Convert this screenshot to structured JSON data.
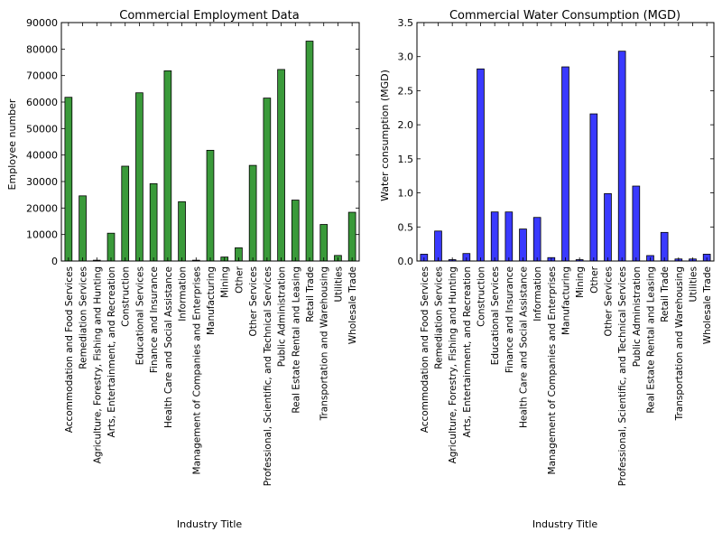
{
  "colors": {
    "employment_bar": "#3a9a3a",
    "water_bar": "#3a3aff",
    "bar_edge": "#000000",
    "axis": "#000000"
  },
  "chart_data": [
    {
      "id": "employment",
      "type": "bar",
      "title": "Commercial Employment Data",
      "xlabel": "Industry Title",
      "ylabel": "Employee number",
      "ylim": [
        0,
        90000
      ],
      "yticks": [
        "0",
        "10000",
        "20000",
        "30000",
        "40000",
        "50000",
        "60000",
        "70000",
        "80000",
        "90000"
      ],
      "ytick_values": [
        0,
        10000,
        20000,
        30000,
        40000,
        50000,
        60000,
        70000,
        80000,
        90000
      ],
      "categories": [
        "Accommodation and Food Services",
        "Remediation Services",
        "Agriculture, Forestry, Fishing and Hunting",
        "Arts, Entertainment, and Recreation",
        "Construction",
        "Educational Services",
        "Finance and Insurance",
        "Health Care and Social Assistance",
        "Information",
        "Management of Companies and Enterprises",
        "Manufacturing",
        "Mining",
        "Other",
        "Other Services",
        "Professional, Scientific, and Technical Services",
        "Public Administration",
        "Real Estate Rental and Leasing",
        "Retail Trade",
        "Transportation and Warehousing",
        "Utilities",
        "Wholesale Trade"
      ],
      "values": [
        61800,
        24600,
        300,
        10500,
        35800,
        63500,
        29200,
        71800,
        22400,
        300,
        41800,
        1500,
        5000,
        36100,
        61500,
        72300,
        23000,
        83000,
        13800,
        2100,
        18400
      ]
    },
    {
      "id": "water",
      "type": "bar",
      "title": "Commercial Water Consumption (MGD)",
      "xlabel": "Industry Title",
      "ylabel": "Water consumption (MGD)",
      "ylim": [
        0,
        3.5
      ],
      "yticks": [
        "0.0",
        "0.5",
        "1.0",
        "1.5",
        "2.0",
        "2.5",
        "3.0",
        "3.5"
      ],
      "ytick_values": [
        0,
        0.5,
        1.0,
        1.5,
        2.0,
        2.5,
        3.0,
        3.5
      ],
      "categories": [
        "Accommodation and Food Services",
        "Remediation Services",
        "Agriculture, Forestry, Fishing and Hunting",
        "Arts, Entertainment, and Recreation",
        "Construction",
        "Educational Services",
        "Finance and Insurance",
        "Health Care and Social Assistance",
        "Information",
        "Management of Companies and Enterprises",
        "Manufacturing",
        "Mining",
        "Other",
        "Other Services",
        "Professional, Scientific, and Technical Services",
        "Public Administration",
        "Real Estate Rental and Leasing",
        "Retail Trade",
        "Transportation and Warehousing",
        "Utilities",
        "Wholesale Trade"
      ],
      "values": [
        0.1,
        0.44,
        0.02,
        0.11,
        2.82,
        0.72,
        0.72,
        0.47,
        0.64,
        0.05,
        2.85,
        0.02,
        2.16,
        0.99,
        3.08,
        1.1,
        0.08,
        0.42,
        0.03,
        0.03,
        0.1
      ]
    }
  ]
}
